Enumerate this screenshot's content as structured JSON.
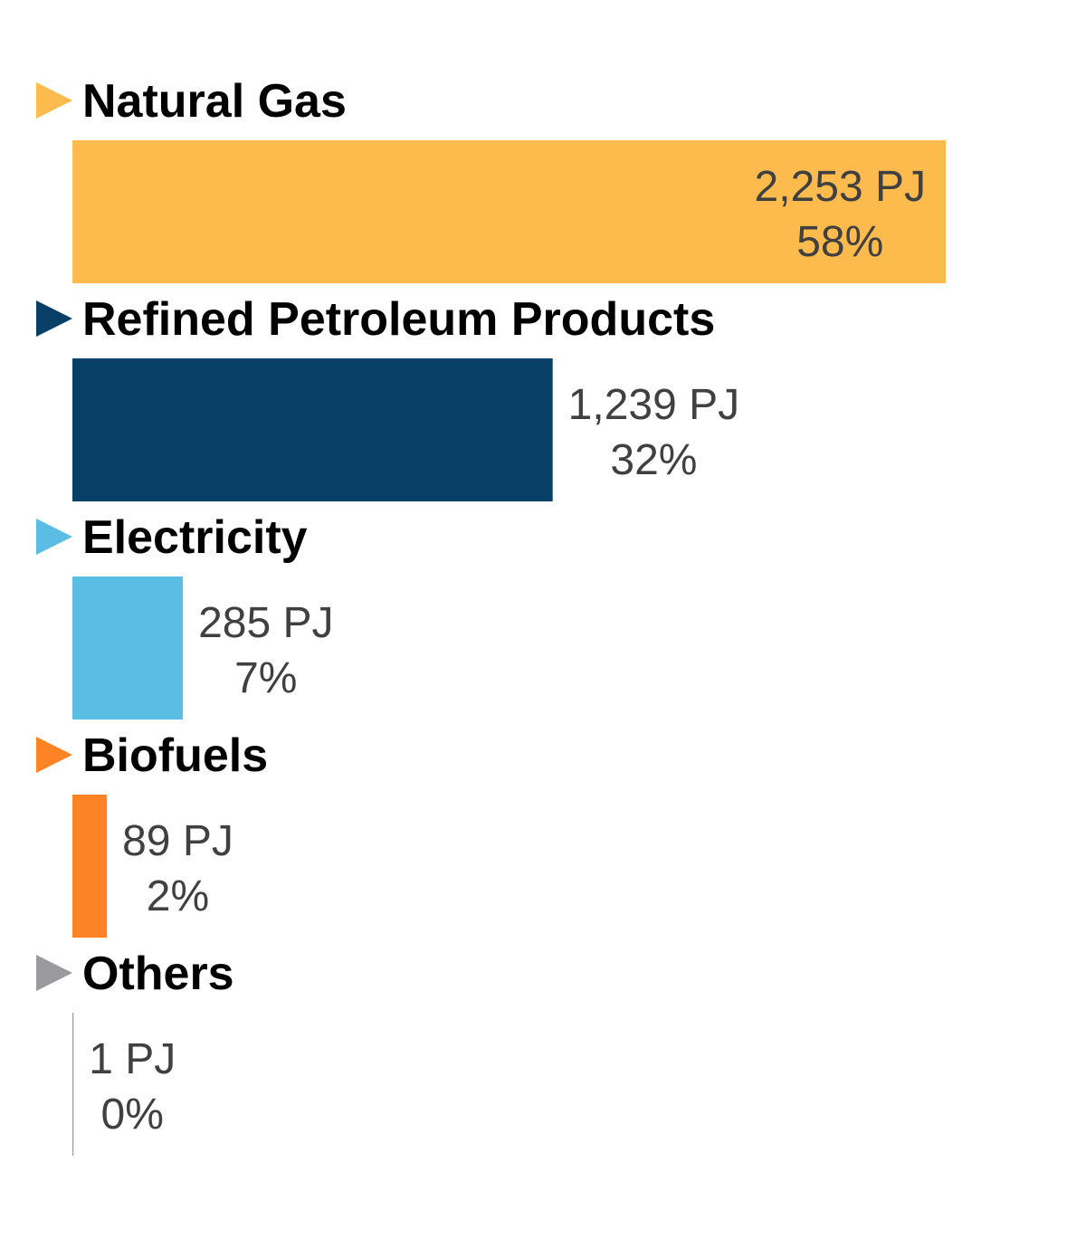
{
  "chart_data": {
    "type": "bar",
    "orientation": "horizontal",
    "unit": "PJ",
    "categories": [
      "Natural Gas",
      "Refined Petroleum Products",
      "Electricity",
      "Biofuels",
      "Others"
    ],
    "values": [
      2253,
      1239,
      285,
      89,
      1
    ],
    "value_labels": [
      "2,253 PJ",
      "1,239 PJ",
      "285 PJ",
      "89 PJ",
      "1 PJ"
    ],
    "percent_labels": [
      "58%",
      "32%",
      "7%",
      "2%",
      "0%"
    ],
    "colors": [
      "#FDBB4E",
      "#073F66",
      "#5BBDE4",
      "#FD8324",
      "#9A9A9F"
    ],
    "grid": false,
    "legend": "none"
  }
}
